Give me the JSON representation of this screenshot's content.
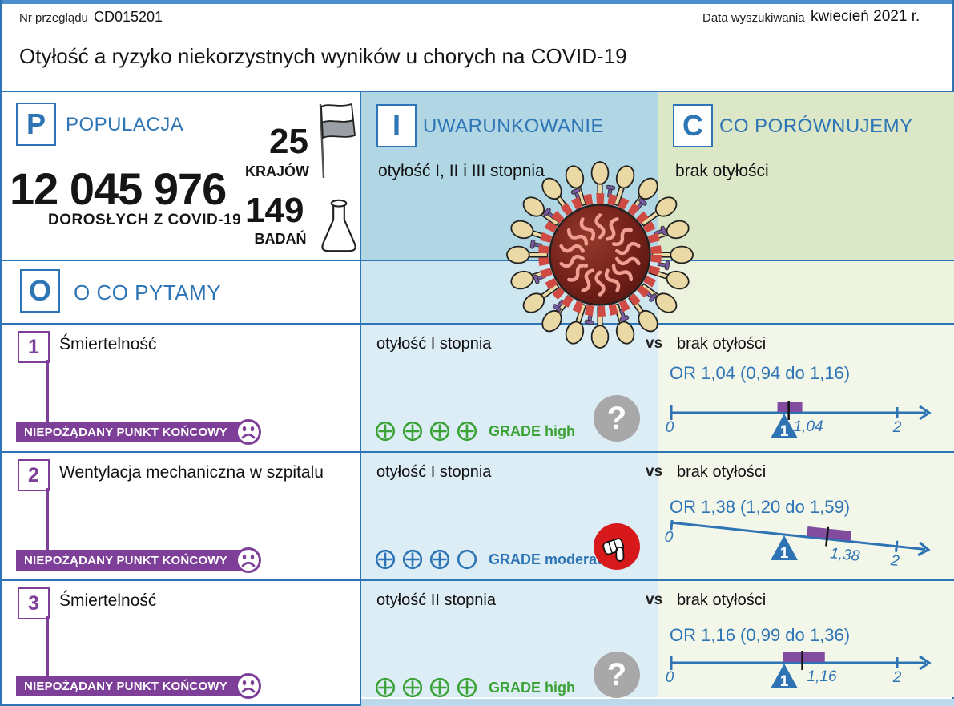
{
  "header": {
    "review_label": "Nr przeglądu",
    "review_id": "CD015201",
    "search_date_label": "Data wyszukiwania",
    "search_date": "kwiecień 2021 r.",
    "title": "Otyłość a ryzyko niekorzystnych wyników u chorych na COVID-19"
  },
  "pico": {
    "population": {
      "letter": "P",
      "label": "POPULACJA",
      "count": "12 045 976",
      "count_caption": "DOROSŁYCH Z COVID-19",
      "countries": {
        "value": "25",
        "label": "KRAJÓW"
      },
      "studies": {
        "value": "149",
        "label": "BADAŃ"
      }
    },
    "intervention": {
      "letter": "I",
      "label": "UWARUNKOWANIE",
      "value": "otyłość I, II i III stopnia"
    },
    "comparison": {
      "letter": "C",
      "label": "CO PORÓWNUJEMY",
      "value": "brak otyłości"
    },
    "outcomes": {
      "letter": "O",
      "label": "O CO PYTAMY"
    }
  },
  "vs_label": "vs",
  "endpoint_badge_label": "NIEPOŻĄDANY PUNKT KOŃCOWY",
  "rows": [
    {
      "number": "1",
      "outcome": "Śmiertelność",
      "exposure": "otyłość I stopnia",
      "comparison": "brak otyłości",
      "grade": {
        "filled": 4,
        "total": 4,
        "label": "GRADE high",
        "color": "#3ba336"
      },
      "result_icon": "question",
      "or_label": "OR 1,04 (0,94 do 1,16)",
      "scale": {
        "or": 1.04,
        "ci_lo": 0.94,
        "ci_hi": 1.16,
        "or_text": "1,04",
        "min_label": "0",
        "max_label": "2",
        "tilt_deg": 0
      }
    },
    {
      "number": "2",
      "outcome": "Wentylacja mechaniczna w szpitalu",
      "exposure": "otyłość I stopnia",
      "comparison": "brak otyłości",
      "grade": {
        "filled": 3,
        "total": 4,
        "label": "GRADE moderate",
        "color": "#2e74b5"
      },
      "result_icon": "thumbs-down",
      "or_label": "OR 1,38 (1,20 do 1,59)",
      "scale": {
        "or": 1.38,
        "ci_lo": 1.2,
        "ci_hi": 1.59,
        "or_text": "1,38",
        "min_label": "0",
        "max_label": "2",
        "tilt_deg": 6
      }
    },
    {
      "number": "3",
      "outcome": "Śmiertelność",
      "exposure": "otyłość II stopnia",
      "comparison": "brak otyłości",
      "grade": {
        "filled": 4,
        "total": 4,
        "label": "GRADE high",
        "color": "#3ba336"
      },
      "result_icon": "question",
      "or_label": "OR 1,16 (0,99 do 1,36)",
      "scale": {
        "or": 1.16,
        "ci_lo": 0.99,
        "ci_hi": 1.36,
        "or_text": "1,16",
        "min_label": "0",
        "max_label": "2",
        "tilt_deg": 0
      }
    }
  ],
  "colors": {
    "accent_blue": "#2e75b6",
    "purple": "#7d3f98",
    "ci_purple": "#824c9e",
    "scale_blue": "#2e74b5",
    "grade_green": "#3ba336",
    "grade_blue": "#2e74b5",
    "question_gray": "#a8a8a8",
    "thumb_red": "#d7191c"
  }
}
